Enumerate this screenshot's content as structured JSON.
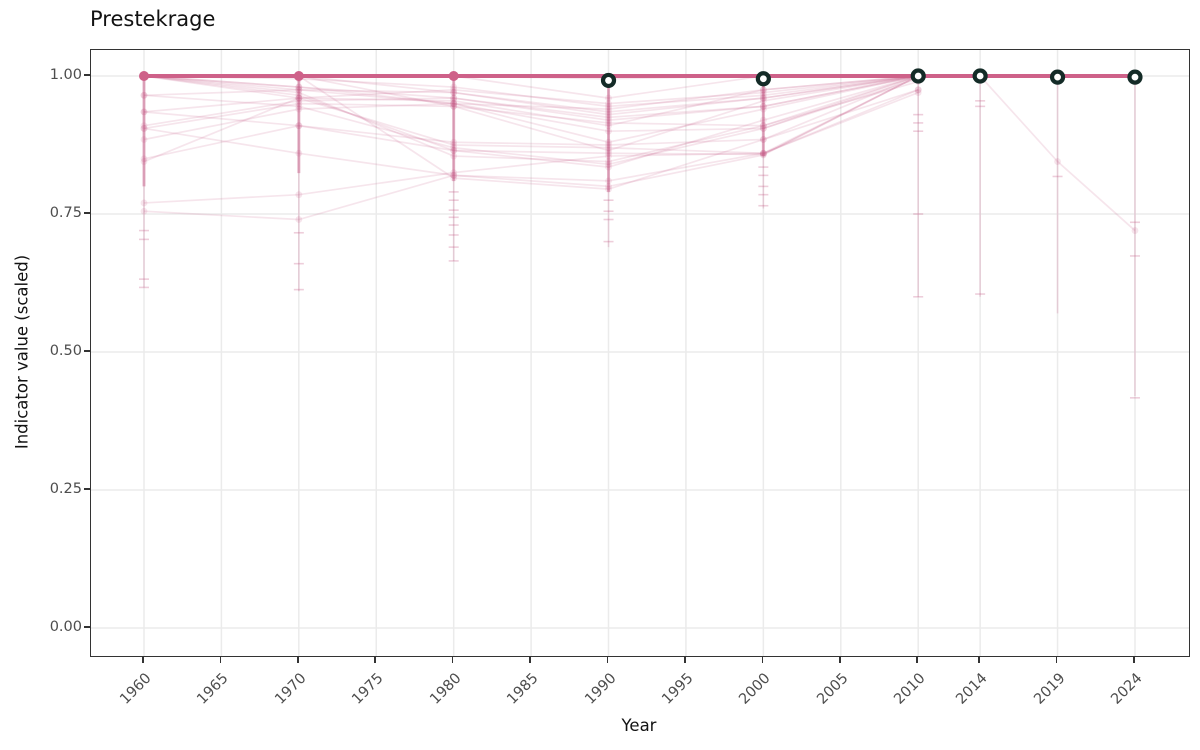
{
  "chart_data": {
    "type": "line",
    "title": "Prestekrage",
    "xlabel": "Year",
    "ylabel": "Indicator value (scaled)",
    "x_ticks": [
      1960,
      1965,
      1970,
      1975,
      1980,
      1985,
      1990,
      1995,
      2000,
      2005,
      2010,
      2014,
      2019,
      2024
    ],
    "y_ticks": [
      {
        "v": 0.0,
        "label": "0.00"
      },
      {
        "v": 0.25,
        "label": "0.25"
      },
      {
        "v": 0.5,
        "label": "0.50"
      },
      {
        "v": 0.75,
        "label": "0.75"
      },
      {
        "v": 1.0,
        "label": "1.00"
      }
    ],
    "xlim": [
      1956.6,
      2027.5
    ],
    "ylim": [
      0,
      1.05
    ],
    "grid": true,
    "legend": "none",
    "colors": {
      "series": "#c85c88",
      "highlight": "#ce6189",
      "ring_stroke": "#142b27",
      "ring_fill": "#ffffff",
      "grid": "#ebebeb",
      "panel_border": "#333333",
      "tick_text": "#4d4d4d",
      "title_text": "#121212"
    },
    "highlight_series": {
      "name": "assessment-mean",
      "years": [
        1960,
        1970,
        1980,
        1990,
        2000,
        2010,
        2014,
        2019,
        2024
      ],
      "values": [
        1.0,
        1.0,
        1.0,
        1.0,
        1.0,
        1.0,
        1.0,
        1.0,
        1.0
      ],
      "solid_point_years": [
        1960,
        1970,
        1980
      ]
    },
    "assessment_points": {
      "marker": "open-ring",
      "years": [
        1990,
        2000,
        2010,
        2014,
        2019,
        2024
      ],
      "values": [
        0.992,
        0.995,
        1.0,
        1.0,
        0.998,
        0.998
      ]
    },
    "series": [
      {
        "years": [
          1960,
          1970,
          1980,
          1990,
          2000,
          2010
        ],
        "values": [
          1.0,
          1.0,
          1.0,
          0.96,
          1.0,
          1.0
        ]
      },
      {
        "years": [
          1960,
          1970,
          1980,
          1990,
          2000,
          2010
        ],
        "values": [
          1.0,
          0.98,
          0.95,
          0.94,
          0.975,
          1.0
        ]
      },
      {
        "years": [
          1960,
          1970,
          1980,
          1990,
          2000,
          2010
        ],
        "values": [
          0.965,
          0.975,
          0.97,
          0.935,
          0.96,
          1.0
        ]
      },
      {
        "years": [
          1960,
          1970,
          1980,
          1990,
          2000,
          2010
        ],
        "values": [
          0.935,
          0.96,
          0.975,
          0.95,
          0.97,
          1.0
        ]
      },
      {
        "years": [
          1960,
          1970,
          1980,
          1990,
          2000,
          2010
        ],
        "values": [
          0.91,
          0.955,
          0.96,
          0.925,
          0.945,
          1.0
        ]
      },
      {
        "years": [
          1960,
          1970,
          1980,
          1990,
          2000,
          2010
        ],
        "values": [
          0.905,
          0.95,
          0.945,
          0.915,
          0.91,
          0.99
        ]
      },
      {
        "years": [
          1960,
          1970,
          1980,
          1990,
          2000,
          2010
        ],
        "values": [
          0.885,
          0.94,
          0.95,
          0.9,
          0.905,
          1.0
        ]
      },
      {
        "years": [
          1960,
          1970,
          1980,
          1990,
          2000,
          2010
        ],
        "values": [
          0.85,
          0.91,
          0.88,
          0.875,
          0.885,
          0.975
        ]
      },
      {
        "years": [
          1960,
          1970,
          1980,
          1990,
          2000,
          2010
        ],
        "values": [
          0.845,
          0.96,
          0.875,
          0.87,
          0.86,
          1.0
        ]
      },
      {
        "years": [
          1960,
          1970,
          1980,
          1990,
          2000,
          2010
        ],
        "values": [
          1.0,
          0.965,
          0.865,
          0.86,
          0.858,
          1.0
        ]
      },
      {
        "years": [
          1960,
          1970,
          1980,
          1990,
          2000,
          2010
        ],
        "values": [
          0.77,
          0.785,
          0.825,
          0.855,
          0.86,
          0.97
        ]
      },
      {
        "years": [
          1960,
          1970,
          1980,
          1990,
          2000,
          2010
        ],
        "values": [
          0.755,
          0.74,
          0.82,
          0.8,
          0.857,
          1.0
        ]
      },
      {
        "years": [
          1960,
          1970,
          1980,
          1990,
          2000,
          2010
        ],
        "values": [
          1.0,
          0.97,
          0.855,
          0.845,
          0.91,
          1.0
        ]
      },
      {
        "years": [
          1960,
          1970,
          1980,
          1990,
          2000,
          2010
        ],
        "values": [
          1.0,
          1.0,
          0.97,
          0.93,
          0.96,
          1.0
        ]
      },
      {
        "years": [
          1960,
          1970,
          1980,
          1990,
          2000,
          2010
        ],
        "values": [
          1.0,
          0.995,
          0.98,
          0.945,
          0.965,
          1.0
        ]
      },
      {
        "years": [
          1960,
          1970,
          1980,
          1990,
          2000,
          2010
        ],
        "values": [
          0.965,
          0.945,
          0.87,
          0.84,
          0.905,
          0.995
        ]
      },
      {
        "years": [
          1960,
          1970,
          1980,
          1990,
          2000,
          2010
        ],
        "values": [
          1.0,
          0.98,
          0.96,
          0.92,
          0.945,
          1.0
        ]
      },
      {
        "years": [
          1960,
          1970,
          1980,
          1990,
          2000,
          2010
        ],
        "values": [
          1.0,
          1.0,
          0.815,
          0.795,
          0.885,
          1.0
        ]
      },
      {
        "years": [
          1960,
          1970,
          1980,
          1990,
          2000,
          2010
        ],
        "values": [
          1.0,
          0.96,
          0.955,
          0.91,
          0.975,
          1.0
        ]
      },
      {
        "years": [
          1960,
          1970,
          1980,
          1990,
          2000,
          2010
        ],
        "values": [
          0.935,
          0.91,
          0.865,
          0.835,
          0.92,
          1.0
        ]
      },
      {
        "years": [
          1960,
          1970,
          1980,
          1990,
          2000,
          2010
        ],
        "values": [
          1.0,
          0.975,
          0.95,
          0.88,
          0.94,
          1.0
        ]
      },
      {
        "years": [
          1960,
          1970,
          1980,
          1990,
          2000,
          2010
        ],
        "values": [
          1.0,
          1.0,
          0.945,
          0.865,
          0.955,
          1.0
        ]
      },
      {
        "years": [
          1960,
          1970,
          1980,
          1990,
          2000,
          2010
        ],
        "values": [
          0.905,
          0.86,
          0.82,
          0.81,
          0.86,
          0.975
        ]
      },
      {
        "years": [
          1960,
          1970,
          1980,
          1990,
          2000,
          2010,
          2014,
          2019,
          2024
        ],
        "values": [
          1.0,
          1.0,
          1.0,
          0.995,
          1.0,
          1.0,
          1.0,
          0.845,
          0.72
        ]
      }
    ],
    "ranges": [
      {
        "year": 1960,
        "min": 0.617,
        "max": 1.0,
        "dense_to": 0.8,
        "caps": [
          0.72,
          0.704,
          0.632,
          0.617
        ]
      },
      {
        "year": 1970,
        "min": 0.61,
        "max": 1.0,
        "dense_to": 0.824,
        "caps": [
          0.716,
          0.66,
          0.613
        ]
      },
      {
        "year": 1980,
        "min": 0.665,
        "max": 1.0,
        "dense_to": 0.81,
        "caps": [
          0.79,
          0.775,
          0.757,
          0.744,
          0.73,
          0.712,
          0.69,
          0.665
        ]
      },
      {
        "year": 1990,
        "min": 0.69,
        "max": 1.0,
        "dense_to": 0.79,
        "caps": [
          0.775,
          0.755,
          0.74,
          0.7
        ]
      },
      {
        "year": 2000,
        "min": 0.76,
        "max": 1.0,
        "dense_to": 0.855,
        "caps": [
          0.835,
          0.82,
          0.8,
          0.785,
          0.765
        ]
      },
      {
        "year": 2010,
        "min": 0.6,
        "max": 1.0,
        "dense_to": null,
        "caps": [
          0.93,
          0.915,
          0.9,
          0.75,
          0.6
        ]
      },
      {
        "year": 2014,
        "min": 0.6,
        "max": 1.0,
        "dense_to": null,
        "caps": [
          0.955,
          0.945,
          0.605
        ]
      },
      {
        "year": 2019,
        "min": 0.57,
        "max": 1.0,
        "dense_to": null,
        "caps": [
          0.818
        ]
      },
      {
        "year": 2024,
        "min": 0.42,
        "max": 1.0,
        "dense_to": null,
        "caps": [
          0.735,
          0.674,
          0.417
        ]
      }
    ]
  }
}
